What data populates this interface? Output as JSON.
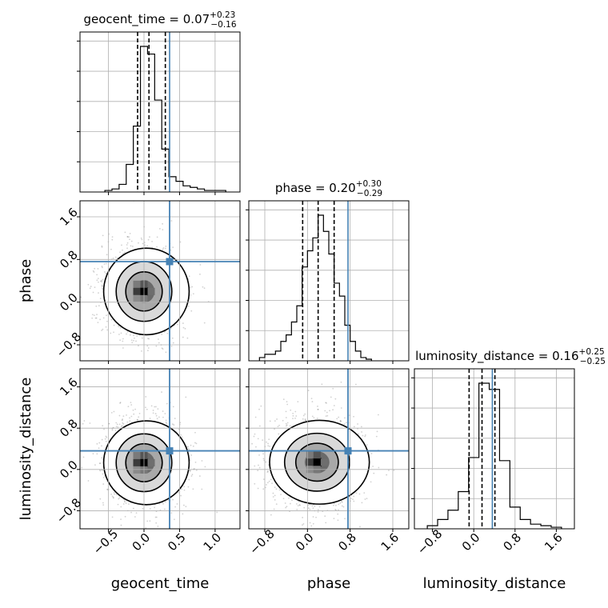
{
  "chart_data": {
    "type": "corner",
    "parameters": [
      "geocent_time",
      "phase",
      "luminosity_distance"
    ],
    "truths": {
      "geocent_time": 0.36,
      "phase": 0.76,
      "luminosity_distance": 0.36
    },
    "truth_color": "#4682b4",
    "axis_ranges": {
      "geocent_time": [
        -0.9,
        1.35
      ],
      "phase": [
        -1.1,
        1.9
      ],
      "luminosity_distance": [
        -1.15,
        1.95
      ]
    },
    "ticks": {
      "geocent_time": {
        "values": [
          -0.5,
          0.0,
          0.5,
          1.0
        ],
        "labels": [
          "−0.5",
          "0.0",
          "0.5",
          "1.0"
        ]
      },
      "phase": {
        "values": [
          -0.8,
          0.0,
          0.8,
          1.6
        ],
        "labels": [
          "−0.8",
          "0.0",
          "0.8",
          "1.6"
        ]
      },
      "luminosity_distance": {
        "values": [
          -0.8,
          0.0,
          0.8,
          1.6
        ],
        "labels": [
          "−0.8",
          "0.0",
          "0.8",
          "1.6"
        ]
      }
    },
    "titles": {
      "geocent_time": {
        "label": "geocent_time = 0.07",
        "plus": "+0.23",
        "minus": "−0.16"
      },
      "phase": {
        "label": "phase = 0.20",
        "plus": "+0.30",
        "minus": "−0.29"
      },
      "luminosity_distance": {
        "label": "luminosity_distance = 0.16",
        "plus": "+0.25",
        "minus": "−0.25"
      }
    },
    "quantiles": {
      "geocent_time": [
        -0.09,
        0.07,
        0.3
      ],
      "phase": [
        -0.09,
        0.2,
        0.5
      ],
      "luminosity_distance": [
        -0.09,
        0.16,
        0.41
      ]
    },
    "histograms": {
      "geocent_time": {
        "bin_edges": [
          -0.55,
          -0.45,
          -0.35,
          -0.25,
          -0.15,
          -0.05,
          0.05,
          0.15,
          0.25,
          0.35,
          0.45,
          0.55,
          0.65,
          0.75,
          0.85,
          0.95,
          1.05,
          1.15
        ],
        "counts": [
          1,
          2,
          5,
          18,
          43,
          95,
          90,
          60,
          28,
          10,
          7,
          4,
          3,
          2,
          1,
          1,
          1
        ]
      },
      "phase": {
        "bin_edges": [
          -0.9,
          -0.8,
          -0.7,
          -0.6,
          -0.5,
          -0.4,
          -0.3,
          -0.2,
          -0.1,
          0.0,
          0.1,
          0.2,
          0.3,
          0.4,
          0.5,
          0.6,
          0.7,
          0.8,
          0.9,
          1.0,
          1.1,
          1.2
        ],
        "counts": [
          2,
          4,
          4,
          6,
          12,
          16,
          24,
          34,
          58,
          68,
          76,
          90,
          80,
          66,
          48,
          40,
          22,
          12,
          6,
          2,
          1
        ]
      },
      "luminosity_distance": {
        "bin_edges": [
          -0.9,
          -0.7,
          -0.5,
          -0.3,
          -0.1,
          0.1,
          0.3,
          0.5,
          0.7,
          0.9,
          1.1,
          1.3,
          1.5,
          1.7
        ],
        "counts": [
          2,
          6,
          12,
          24,
          46,
          94,
          90,
          44,
          14,
          6,
          3,
          2,
          1
        ]
      }
    },
    "scatter_2d": {
      "phase_vs_geocent_time": {
        "center": [
          0.0,
          0.2
        ],
        "sigma": [
          0.27,
          0.42
        ]
      },
      "luminosity_distance_vs_geocent_time": {
        "center": [
          0.0,
          0.13
        ],
        "sigma": [
          0.27,
          0.42
        ]
      },
      "luminosity_distance_vs_phase": {
        "center": [
          0.18,
          0.14
        ],
        "sigma": [
          0.42,
          0.42
        ]
      }
    },
    "grid": true
  }
}
